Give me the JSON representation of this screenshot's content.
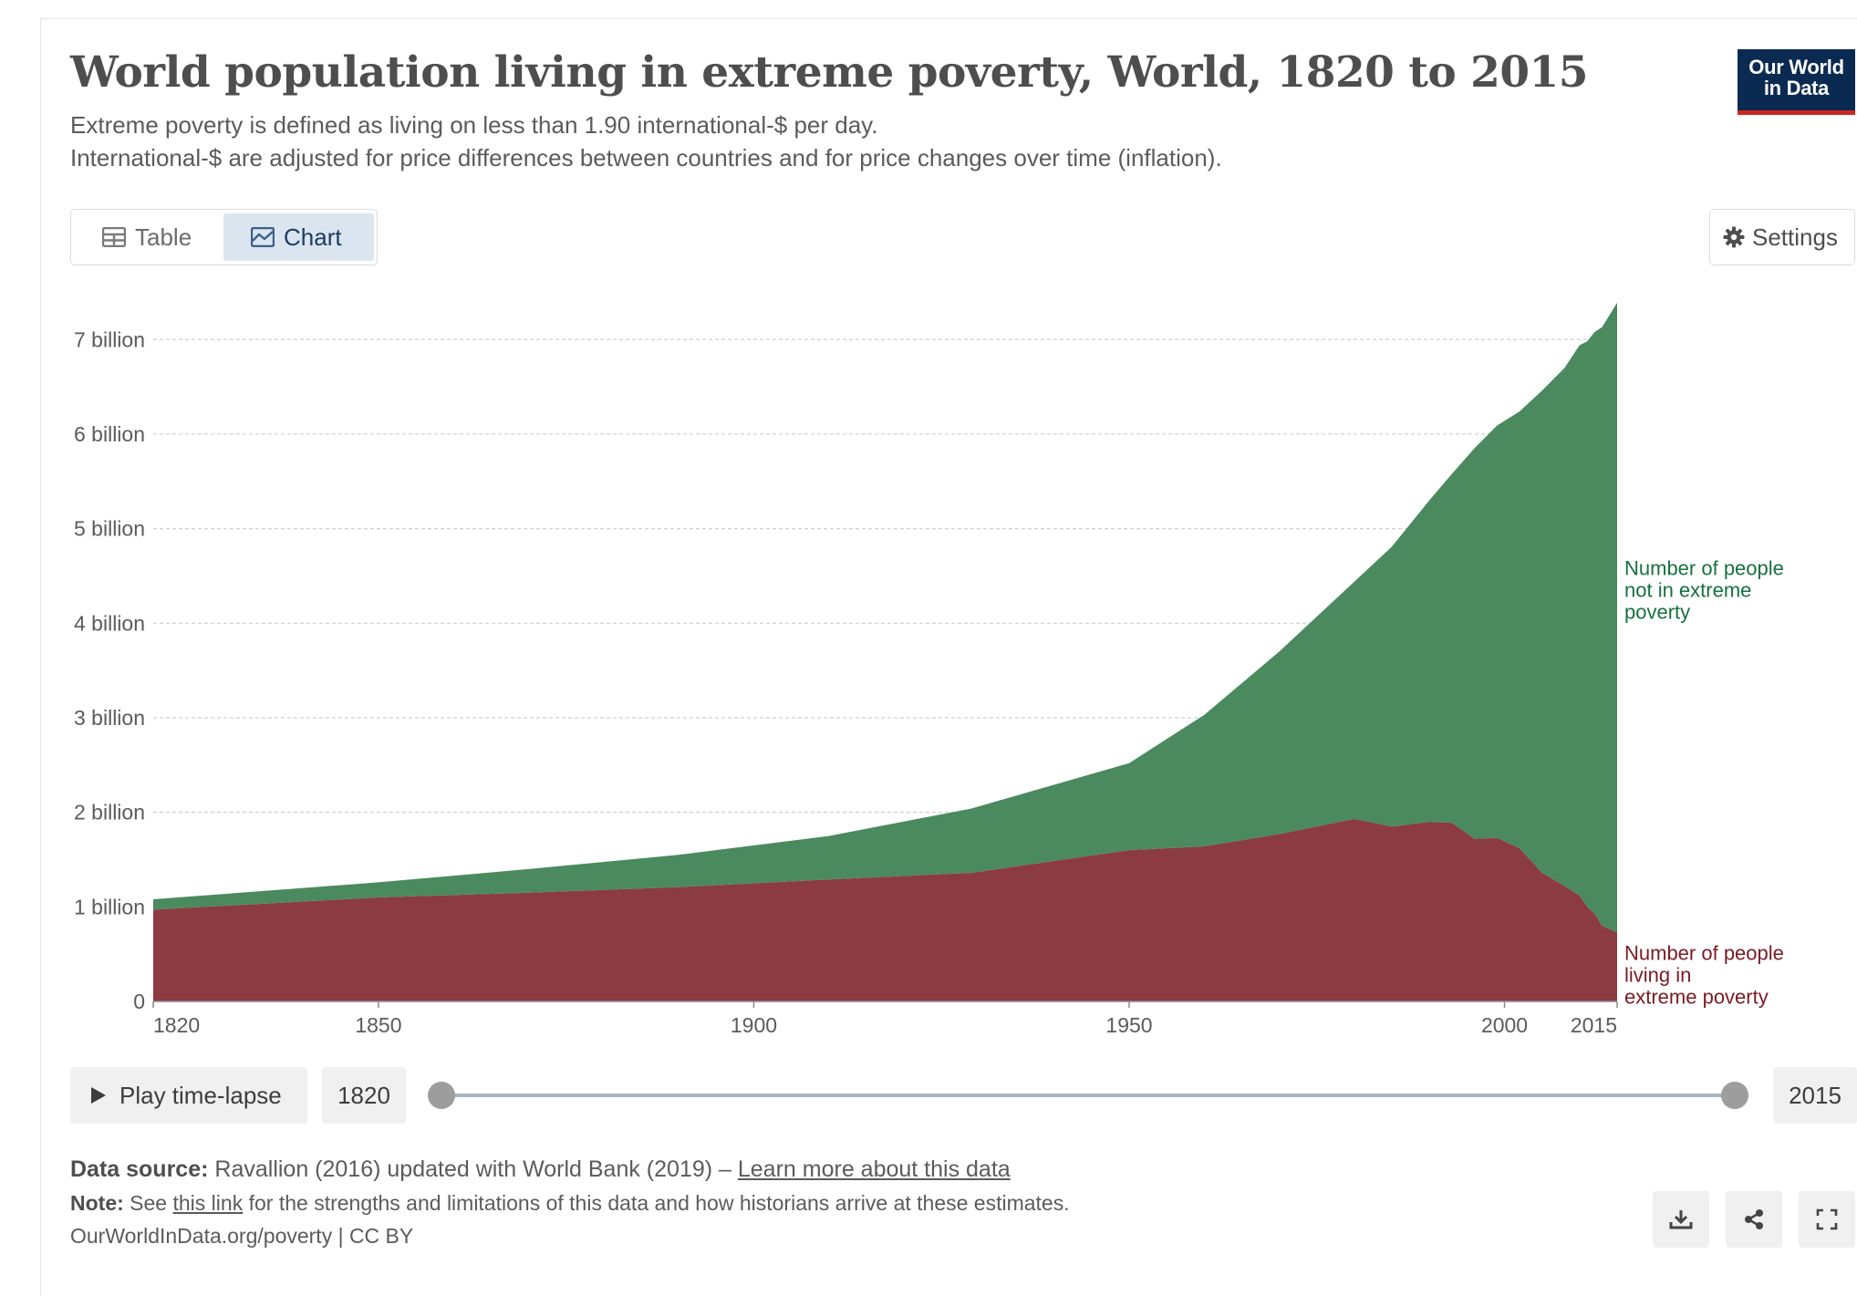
{
  "header": {
    "title": "World population living in extreme poverty, World, 1820 to 2015",
    "subtitle_line1": "Extreme poverty is defined as living on less than 1.90 international-$ per day.",
    "subtitle_line2": "International-$ are adjusted for price differences between countries and for price changes over time (inflation).",
    "logo_line1": "Our World",
    "logo_line2": "in Data"
  },
  "tabs": [
    {
      "label": "Table",
      "icon": "table-icon",
      "active": false
    },
    {
      "label": "Chart",
      "icon": "chart-icon",
      "active": true
    }
  ],
  "settings_label": "Settings",
  "chart_data": {
    "type": "area",
    "stacked": true,
    "x": [
      1820,
      1850,
      1870,
      1890,
      1910,
      1929,
      1950,
      1960,
      1970,
      1980,
      1985,
      1990,
      1993,
      1996,
      1999,
      2002,
      2005,
      2008,
      2010,
      2011,
      2012,
      2013,
      2015
    ],
    "series": [
      {
        "name": "Number of people living in extreme poverty",
        "color": "#8c3b43",
        "values": [
          0.97,
          1.1,
          1.15,
          1.21,
          1.29,
          1.36,
          1.6,
          1.64,
          1.77,
          1.93,
          1.85,
          1.9,
          1.89,
          1.72,
          1.73,
          1.62,
          1.36,
          1.22,
          1.12,
          1.0,
          0.93,
          0.8,
          0.73
        ]
      },
      {
        "name": "Number of people not in extreme poverty",
        "color": "#4a8a5e",
        "values": [
          0.11,
          0.16,
          0.25,
          0.34,
          0.46,
          0.68,
          0.92,
          1.39,
          1.93,
          2.51,
          2.96,
          3.4,
          3.69,
          4.13,
          4.36,
          4.62,
          5.1,
          5.48,
          5.82,
          5.98,
          6.15,
          6.33,
          6.66
        ]
      }
    ],
    "label_colors": [
      "#7b1a24",
      "#16713f"
    ],
    "y_ticks": [
      {
        "value": 0,
        "label": "0"
      },
      {
        "value": 1,
        "label": "1 billion"
      },
      {
        "value": 2,
        "label": "2 billion"
      },
      {
        "value": 3,
        "label": "3 billion"
      },
      {
        "value": 4,
        "label": "4 billion"
      },
      {
        "value": 5,
        "label": "5 billion"
      },
      {
        "value": 6,
        "label": "6 billion"
      },
      {
        "value": 7,
        "label": "7 billion"
      }
    ],
    "x_ticks": [
      1820,
      1850,
      1900,
      1950,
      2000,
      2015
    ],
    "xlim": [
      1820,
      2015
    ],
    "ylim": [
      0,
      7.35
    ],
    "grid": true,
    "legend": "right, inline labels"
  },
  "timeline": {
    "play_label": "Play time-lapse",
    "start_year": "1820",
    "end_year": "2015"
  },
  "footer": {
    "source_label": "Data source:",
    "source_text": " Ravallion (2016) updated with World Bank (2019) – ",
    "source_link": "Learn more about this data",
    "note_label": "Note:",
    "note_pre": " See ",
    "note_link": "this link",
    "note_post": " for the strengths and limitations of this data and how historians arrive at these estimates.",
    "url_text": "OurWorldInData.org/poverty | CC BY"
  },
  "icons": {
    "download": "download-icon",
    "share": "share-icon",
    "fullscreen": "fullscreen-icon"
  }
}
